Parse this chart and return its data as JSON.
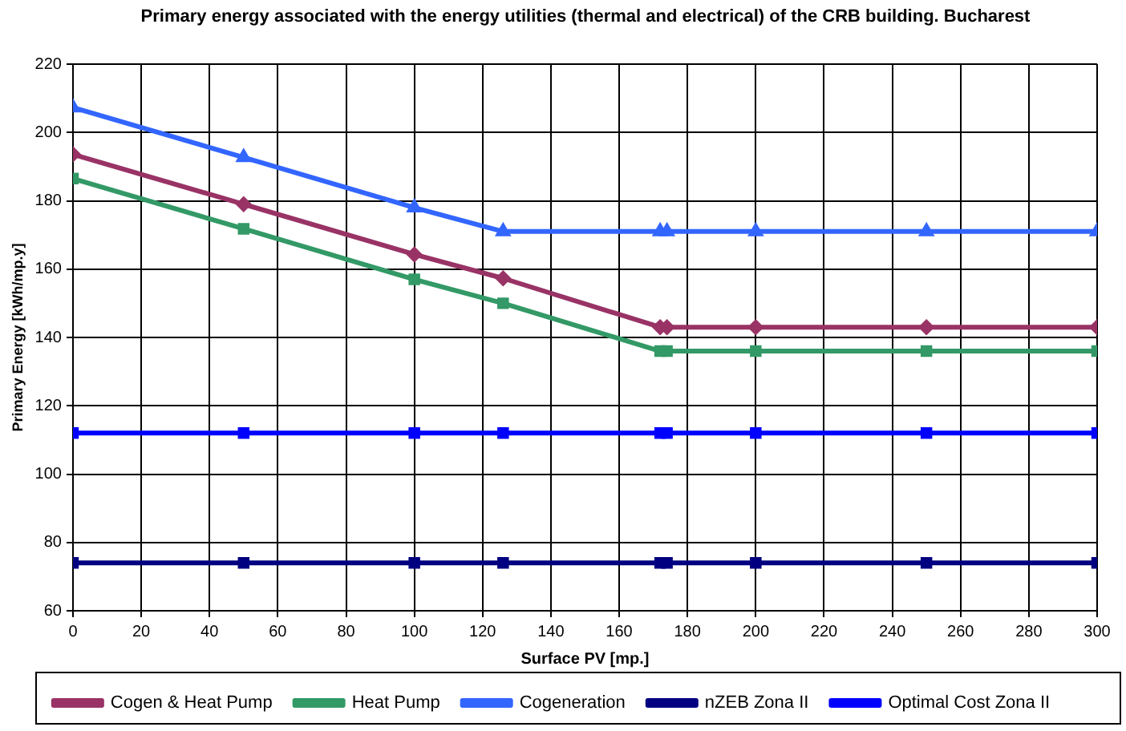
{
  "chart_data": {
    "type": "line",
    "title": "Primary energy associated with the energy utilities (thermal and electrical) of the CRB building. Bucharest",
    "xlabel": "Surface PV [mp.]",
    "ylabel": "Primary Energy [kWh/mp.y]",
    "x": [
      0,
      50,
      100,
      126,
      172,
      174,
      200,
      250,
      300
    ],
    "series": [
      {
        "name": "Cogen & Heat Pump",
        "color": "#993366",
        "marker": "diamond",
        "values": [
          193.6,
          179,
          164.3,
          157.3,
          143,
          143,
          143,
          143,
          143
        ]
      },
      {
        "name": "Heat Pump",
        "color": "#339966",
        "marker": "square",
        "values": [
          186.5,
          171.8,
          157,
          150,
          136,
          136,
          136,
          136,
          136
        ]
      },
      {
        "name": "Cogeneration",
        "color": "#3366ff",
        "marker": "triangle",
        "values": [
          207.3,
          192.7,
          178,
          171,
          171,
          171,
          171,
          171,
          171
        ]
      },
      {
        "name": "nZEB Zona II",
        "color": "#000080",
        "marker": "square",
        "values": [
          74,
          74,
          74,
          74,
          74,
          74,
          74,
          74,
          74
        ]
      },
      {
        "name": "Optimal Cost Zona II",
        "color": "#0000ff",
        "marker": "square",
        "values": [
          112,
          112,
          112,
          112,
          112,
          112,
          112,
          112,
          112
        ]
      }
    ],
    "xlim": [
      0,
      300
    ],
    "xticks": [
      0,
      20,
      40,
      60,
      80,
      100,
      120,
      140,
      160,
      180,
      200,
      220,
      240,
      260,
      280,
      300
    ],
    "ylim": [
      60,
      220
    ],
    "yticks": [
      60,
      80,
      100,
      120,
      140,
      160,
      180,
      200,
      220
    ],
    "grid": true,
    "legend": "bottom",
    "line_style": "solid"
  }
}
